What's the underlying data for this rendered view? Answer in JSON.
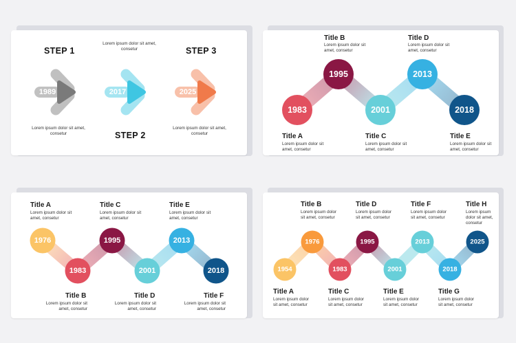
{
  "lorem_block": "Lorem ipsum dolor sit amet, consetur",
  "colors": {
    "gray": "#7a7a7a",
    "light_blue": "#3fc6e2",
    "orange": "#f07a4a",
    "red": "#e2505f",
    "maroon": "#8a1744",
    "teal": "#67cfd9",
    "blue": "#36b1e2",
    "navy": "#10558a",
    "yellow": "#fbc466",
    "amber": "#f99a3c"
  },
  "panel1": {
    "steps": [
      {
        "label": "STEP 1",
        "year": "1989",
        "desc": "Lorem ipsum dolor sit amet, consetur",
        "color": "gray"
      },
      {
        "label": "STEP 2",
        "year": "2017",
        "desc": "Lorem ipsum dolor sit amet, consetur",
        "color": "light_blue"
      },
      {
        "label": "STEP 3",
        "year": "2025",
        "desc": "Lorem ipsum dolor sit amet, consetur",
        "color": "orange"
      }
    ]
  },
  "panel2": {
    "nodes": [
      {
        "title": "Title A",
        "year": "1983",
        "color": "red"
      },
      {
        "title": "Title B",
        "year": "1995",
        "color": "maroon"
      },
      {
        "title": "Title C",
        "year": "2001",
        "color": "teal"
      },
      {
        "title": "Title D",
        "year": "2013",
        "color": "blue"
      },
      {
        "title": "Title E",
        "year": "2018",
        "color": "navy"
      }
    ]
  },
  "panel3": {
    "nodes": [
      {
        "title": "Title A",
        "year": "1976",
        "color": "yellow"
      },
      {
        "title": "Title B",
        "year": "1983",
        "color": "red"
      },
      {
        "title": "Title C",
        "year": "1995",
        "color": "maroon"
      },
      {
        "title": "Title D",
        "year": "2001",
        "color": "teal"
      },
      {
        "title": "Title E",
        "year": "2013",
        "color": "blue"
      },
      {
        "title": "Title F",
        "year": "2018",
        "color": "navy"
      }
    ]
  },
  "panel4": {
    "nodes": [
      {
        "title": "Title A",
        "year": "1954",
        "color": "yellow"
      },
      {
        "title": "Title B",
        "year": "1976",
        "color": "amber"
      },
      {
        "title": "Title C",
        "year": "1983",
        "color": "red"
      },
      {
        "title": "Title D",
        "year": "1995",
        "color": "maroon"
      },
      {
        "title": "Title E",
        "year": "2001",
        "color": "teal"
      },
      {
        "title": "Title F",
        "year": "2013",
        "color": "teal"
      },
      {
        "title": "Title G",
        "year": "2018",
        "color": "blue"
      },
      {
        "title": "Title H",
        "year": "2025",
        "color": "navy"
      }
    ]
  }
}
